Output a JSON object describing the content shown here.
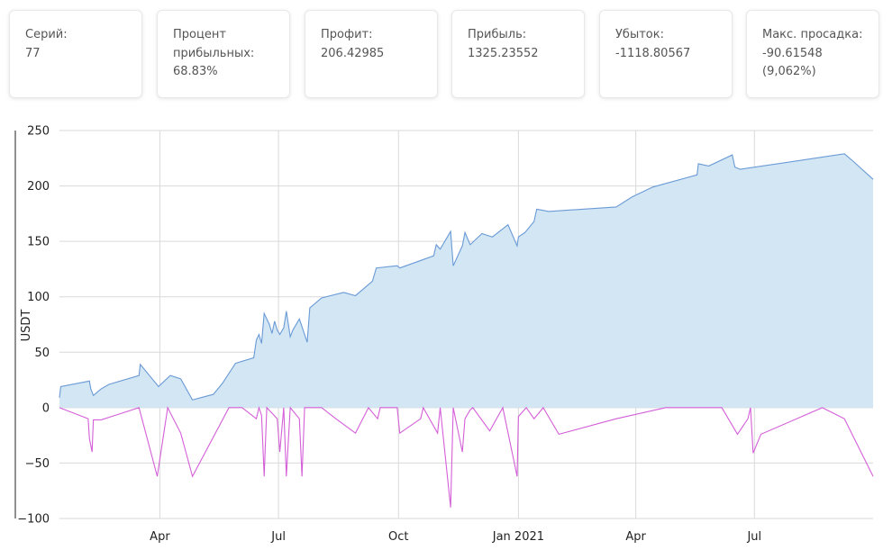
{
  "stats": [
    {
      "label": "Серий:",
      "value": "77"
    },
    {
      "label": "Процент прибыльных:",
      "value": "68.83%"
    },
    {
      "label": "Профит:",
      "value": "206.42985"
    },
    {
      "label": "Прибыль:",
      "value": "1325.23552"
    },
    {
      "label": "Убыток:",
      "value": "-1118.80567"
    },
    {
      "label": "Макс. просадка:",
      "value": "-90.61548 (9,062%)"
    }
  ],
  "chart_data": {
    "type": "area",
    "ylabel": "USDT",
    "ylim": [
      -100,
      250
    ],
    "yticks": [
      -100,
      -50,
      0,
      50,
      100,
      150,
      200,
      250
    ],
    "xlim": [
      "2020-01-15",
      "2021-09-30"
    ],
    "xticks": [
      {
        "date": "2020-04-01",
        "label": "Apr"
      },
      {
        "date": "2020-07-01",
        "label": "Jul"
      },
      {
        "date": "2020-10-01",
        "label": "Oct"
      },
      {
        "date": "2021-01-01",
        "label": "Jan 2021"
      },
      {
        "date": "2021-04-01",
        "label": "Apr"
      },
      {
        "date": "2021-07-01",
        "label": "Jul"
      }
    ],
    "grid": true,
    "colors": {
      "profit_line": "#6a9ad6",
      "profit_fill": "#d2e6f4",
      "drawdown_line": "#d45fd8",
      "grid": "#d9d9d9"
    },
    "series": [
      {
        "type": "area",
        "points": [
          [
            "2020-01-15",
            9
          ],
          [
            "2020-01-16",
            19
          ],
          [
            "2020-02-07",
            24
          ],
          [
            "2020-02-08",
            17
          ],
          [
            "2020-02-10",
            11
          ],
          [
            "2020-02-16",
            17
          ],
          [
            "2020-02-22",
            21
          ],
          [
            "2020-03-16",
            29
          ],
          [
            "2020-03-17",
            39
          ],
          [
            "2020-03-31",
            19
          ],
          [
            "2020-04-09",
            29
          ],
          [
            "2020-04-17",
            26
          ],
          [
            "2020-04-26",
            7
          ],
          [
            "2020-05-12",
            12
          ],
          [
            "2020-05-19",
            22
          ],
          [
            "2020-05-29",
            40
          ],
          [
            "2020-06-12",
            45
          ],
          [
            "2020-06-14",
            61
          ],
          [
            "2020-06-16",
            66
          ],
          [
            "2020-06-18",
            58
          ],
          [
            "2020-06-20",
            85
          ],
          [
            "2020-06-24",
            75
          ],
          [
            "2020-06-26",
            67
          ],
          [
            "2020-06-28",
            78
          ],
          [
            "2020-06-30",
            70
          ],
          [
            "2020-07-02",
            66
          ],
          [
            "2020-07-05",
            72
          ],
          [
            "2020-07-07",
            87
          ],
          [
            "2020-07-10",
            64
          ],
          [
            "2020-07-12",
            70
          ],
          [
            "2020-07-17",
            80
          ],
          [
            "2020-07-23",
            59
          ],
          [
            "2020-07-25",
            90
          ],
          [
            "2020-08-03",
            99
          ],
          [
            "2020-08-20",
            104
          ],
          [
            "2020-08-29",
            101
          ],
          [
            "2020-09-11",
            114
          ],
          [
            "2020-09-14",
            126
          ],
          [
            "2020-09-30",
            128
          ],
          [
            "2020-10-02",
            126
          ],
          [
            "2020-10-28",
            137
          ],
          [
            "2020-10-30",
            147
          ],
          [
            "2020-11-02",
            143
          ],
          [
            "2020-11-10",
            159
          ],
          [
            "2020-11-12",
            128
          ],
          [
            "2020-11-19",
            146
          ],
          [
            "2020-11-21",
            158
          ],
          [
            "2020-11-25",
            147
          ],
          [
            "2020-12-04",
            157
          ],
          [
            "2020-12-12",
            154
          ],
          [
            "2020-12-24",
            165
          ],
          [
            "2020-12-31",
            146
          ],
          [
            "2021-01-01",
            154
          ],
          [
            "2021-01-06",
            158
          ],
          [
            "2021-01-13",
            168
          ],
          [
            "2021-01-15",
            179
          ],
          [
            "2021-01-20",
            178
          ],
          [
            "2021-01-24",
            177
          ],
          [
            "2021-03-17",
            181
          ],
          [
            "2021-03-29",
            190
          ],
          [
            "2021-04-14",
            199
          ],
          [
            "2021-05-18",
            210
          ],
          [
            "2021-05-19",
            220
          ],
          [
            "2021-05-27",
            218
          ],
          [
            "2021-06-14",
            228
          ],
          [
            "2021-06-16",
            217
          ],
          [
            "2021-06-20",
            215
          ],
          [
            "2021-09-08",
            229
          ],
          [
            "2021-09-10",
            227
          ],
          [
            "2021-09-15",
            222
          ],
          [
            "2021-09-30",
            206
          ]
        ]
      },
      {
        "type": "line",
        "points": [
          [
            "2020-01-15",
            0
          ],
          [
            "2020-02-06",
            -10
          ],
          [
            "2020-02-07",
            -28
          ],
          [
            "2020-02-09",
            -40
          ],
          [
            "2020-02-10",
            -11
          ],
          [
            "2020-02-16",
            -11
          ],
          [
            "2020-03-16",
            0
          ],
          [
            "2020-03-30",
            -62
          ],
          [
            "2020-04-07",
            0
          ],
          [
            "2020-04-17",
            -23
          ],
          [
            "2020-04-26",
            -62
          ],
          [
            "2020-05-24",
            0
          ],
          [
            "2020-06-03",
            0
          ],
          [
            "2020-06-14",
            -10
          ],
          [
            "2020-06-16",
            0
          ],
          [
            "2020-06-18",
            -7
          ],
          [
            "2020-06-20",
            -62
          ],
          [
            "2020-06-22",
            0
          ],
          [
            "2020-06-30",
            -10
          ],
          [
            "2020-07-02",
            -40
          ],
          [
            "2020-07-05",
            0
          ],
          [
            "2020-07-07",
            -62
          ],
          [
            "2020-07-10",
            0
          ],
          [
            "2020-07-17",
            -10
          ],
          [
            "2020-07-19",
            -62
          ],
          [
            "2020-07-21",
            0
          ],
          [
            "2020-08-03",
            0
          ],
          [
            "2020-08-14",
            -10
          ],
          [
            "2020-08-29",
            -23
          ],
          [
            "2020-09-08",
            0
          ],
          [
            "2020-09-15",
            -10
          ],
          [
            "2020-09-17",
            0
          ],
          [
            "2020-09-30",
            0
          ],
          [
            "2020-10-02",
            -23
          ],
          [
            "2020-10-18",
            -10
          ],
          [
            "2020-10-20",
            0
          ],
          [
            "2020-10-31",
            -23
          ],
          [
            "2020-11-02",
            0
          ],
          [
            "2020-11-10",
            -90
          ],
          [
            "2020-11-12",
            0
          ],
          [
            "2020-11-19",
            -40
          ],
          [
            "2020-11-21",
            -10
          ],
          [
            "2020-11-25",
            -2
          ],
          [
            "2020-11-27",
            0
          ],
          [
            "2020-12-10",
            -21
          ],
          [
            "2020-12-20",
            0
          ],
          [
            "2020-12-31",
            -62
          ],
          [
            "2021-01-01",
            -8
          ],
          [
            "2021-01-07",
            0
          ],
          [
            "2021-01-13",
            -10
          ],
          [
            "2021-01-20",
            0
          ],
          [
            "2021-02-01",
            -24
          ],
          [
            "2021-03-17",
            -10
          ],
          [
            "2021-04-24",
            0
          ],
          [
            "2021-06-06",
            0
          ],
          [
            "2021-06-18",
            -24
          ],
          [
            "2021-06-26",
            -10
          ],
          [
            "2021-06-28",
            0
          ],
          [
            "2021-06-30",
            -41
          ],
          [
            "2021-07-06",
            -24
          ],
          [
            "2021-08-22",
            0
          ],
          [
            "2021-09-08",
            -10
          ],
          [
            "2021-09-30",
            -62
          ]
        ]
      }
    ]
  }
}
